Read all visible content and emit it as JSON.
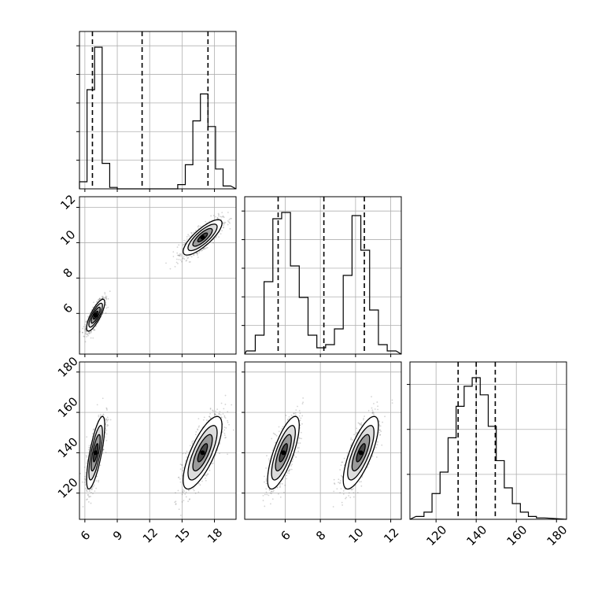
{
  "chart_data": {
    "type": "corner",
    "title": "",
    "parameters": [
      {
        "label": "",
        "range": [
          5.5,
          20
        ]
      },
      {
        "label": "",
        "range": [
          3.7,
          12.6
        ]
      },
      {
        "label": "",
        "range": [
          107,
          185
        ]
      }
    ],
    "ticks": {
      "p0": [
        "6",
        "9",
        "12",
        "15",
        "18"
      ],
      "p1_y": [
        "6",
        "8",
        "10",
        "12"
      ],
      "p1_x": [
        "6",
        "8",
        "10",
        "12"
      ],
      "p2_y": [
        "120",
        "140",
        "160",
        "180"
      ],
      "p2_x": [
        "120",
        "140",
        "160",
        "180"
      ]
    },
    "tick_values": {
      "p0": [
        6,
        9,
        12,
        15,
        18
      ],
      "p1": [
        6,
        8,
        10,
        12
      ],
      "p2": [
        120,
        140,
        160,
        180
      ]
    },
    "quantile_lines": {
      "p0": [
        6.7,
        11.3,
        17.4
      ],
      "p1": [
        5.6,
        8.2,
        10.5
      ],
      "p2": [
        131,
        140,
        149.5
      ]
    },
    "histograms": {
      "p0": {
        "edges": [
          5.5,
          6.2,
          6.9,
          7.6,
          8.3,
          9.0,
          9.7,
          10.4,
          11.1,
          11.8,
          12.5,
          13.2,
          13.9,
          14.6,
          15.3,
          16.0,
          16.7,
          17.4,
          18.1,
          18.8,
          19.5
        ],
        "counts": [
          0.05,
          0.7,
          1.0,
          0.18,
          0.01,
          0,
          0,
          0,
          0,
          0,
          0,
          0,
          0,
          0.03,
          0.17,
          0.48,
          0.67,
          0.44,
          0.14,
          0.02
        ]
      },
      "p1": {
        "edges": [
          3.8,
          4.3,
          4.8,
          5.3,
          5.8,
          6.3,
          6.8,
          7.3,
          7.8,
          8.3,
          8.8,
          9.3,
          9.8,
          10.3,
          10.8,
          11.3,
          11.8,
          12.3
        ],
        "counts": [
          0.02,
          0.12,
          0.46,
          0.86,
          0.9,
          0.56,
          0.36,
          0.12,
          0.04,
          0.06,
          0.16,
          0.5,
          0.88,
          0.66,
          0.28,
          0.06,
          0.02
        ]
      },
      "p2": {
        "edges": [
          110,
          114,
          118,
          122,
          126,
          130,
          134,
          138,
          142,
          146,
          150,
          154,
          158,
          162,
          166,
          170,
          174
        ],
        "counts": [
          0.02,
          0.05,
          0.18,
          0.33,
          0.57,
          0.79,
          0.93,
          0.99,
          0.87,
          0.65,
          0.41,
          0.22,
          0.11,
          0.05,
          0.02,
          0.01
        ]
      }
    },
    "modes": [
      {
        "name": "",
        "p0": [
          7.0,
          0.42
        ],
        "p1": [
          5.9,
          0.45
        ],
        "p2": [
          140,
          9
        ]
      },
      {
        "name": "",
        "p0": [
          16.9,
          0.9
        ],
        "p1": [
          10.3,
          0.5
        ],
        "p2": [
          140,
          9
        ]
      }
    ],
    "joint_correlation": {
      "p0_p1": 0.8,
      "p0_p2": 0.75,
      "p1_p2": 0.75
    },
    "contour_levels_sigma": [
      0.5,
      1.0,
      1.5,
      2.0
    ],
    "grid": true,
    "colors": {
      "line": "#000000",
      "scatter": "#555555",
      "grid": "#b0b0b0",
      "background": "#ffffff"
    }
  }
}
